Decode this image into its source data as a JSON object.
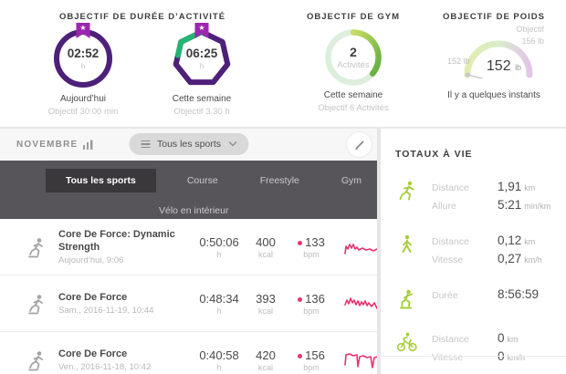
{
  "colors": {
    "ring_purple": "#4d2079",
    "badge_purple": "#9b27af",
    "progress_green": "#22b573",
    "gym_green_light": "#ddeedd",
    "sparkline_pink": "#e8336e",
    "icon_green": "#a6ce39",
    "tabbar_dark": "#58555a"
  },
  "goals": {
    "duration": {
      "title": "OBJECTIF DE DURÉE D’ACTIVITÉ",
      "rings": [
        {
          "value": "02:52",
          "unit": "h",
          "period": "Aujourd’hui",
          "goal": "Objectif 30:00 min"
        },
        {
          "value": "06:25",
          "unit": "h",
          "period": "Cette semaine",
          "goal": "Objectif 3.30 h"
        }
      ]
    },
    "gym": {
      "title": "OBJECTIF DE GYM",
      "value": "2",
      "value_unit": "Activités",
      "period": "Cette semaine",
      "goal": "Objectif 6 Activités"
    },
    "weight": {
      "title": "OBJECTIF DE POIDS",
      "goal_label": "Objectif",
      "goal_value": "156 lb",
      "marker_value": "152 lb",
      "current_value": "152",
      "current_unit": "lb",
      "updated": "Il y a quelques instants"
    }
  },
  "activity_panel": {
    "month_label": "NOVEMBRE",
    "filter_label": "Tous les sports",
    "tabs": [
      {
        "label": "Tous les sports"
      },
      {
        "label": "Course"
      },
      {
        "label": "Freestyle"
      },
      {
        "label": "Gym"
      },
      {
        "label": "Vélo en intérieur"
      }
    ],
    "rows": [
      {
        "title": "Core De Force: Dynamic Strength",
        "date": "Aujourd’hui, 9:06",
        "duration": "0:50:06",
        "duration_unit": "h",
        "calories": "400",
        "calories_unit": "kcal",
        "heart_rate": "133",
        "heart_rate_unit": "bpm",
        "sparkline": "2,20 3,12 5,15 7,10 9,14 11,10 13,15 15,13 17,16 21,14 25,16 29,15 33,17 37,15 41,17 44,8 47,6 50,10 54,9"
      },
      {
        "title": "Core De Force",
        "date": "Sam., 2016-11-19, 10:44",
        "duration": "0:48:34",
        "duration_unit": "h",
        "calories": "393",
        "calories_unit": "kcal",
        "heart_rate": "136",
        "heart_rate_unit": "bpm",
        "sparkline": "2,14 4,9 6,13 8,7 10,12 12,9 14,14 16,10 18,15 20,11 22,14 24,10 26,15 28,12 31,16 34,12 37,18 40,13 43,20 46,14 49,21 52,15 54,17"
      },
      {
        "title": "Core De Force",
        "date": "Ven., 2016-11-18, 10:42",
        "duration": "0:40:58",
        "duration_unit": "h",
        "calories": "420",
        "calories_unit": "kcal",
        "heart_rate": "156",
        "heart_rate_unit": "bpm",
        "sparkline": "2,18 3,7 7,6 11,8 15,7 16,20 18,9 22,8 26,10 30,9 32,21 34,10 38,9 42,11 43,23 46,9 50,10 52,12 54,22"
      }
    ]
  },
  "totals": {
    "title": "TOTAUX À VIE",
    "entries": [
      {
        "icon": "run-icon",
        "stats": [
          {
            "label": "Distance",
            "value": "1,91",
            "unit": "km"
          },
          {
            "label": "Allure",
            "value": "5:21",
            "unit": "min/km"
          }
        ]
      },
      {
        "icon": "walk-icon",
        "stats": [
          {
            "label": "Distance",
            "value": "0,12",
            "unit": "km"
          },
          {
            "label": "Vitesse",
            "value": "0,27",
            "unit": "km/h"
          }
        ]
      },
      {
        "icon": "gym-icon",
        "stats": [
          {
            "label": "Durée",
            "value": "8:56:59",
            "unit": ""
          }
        ]
      },
      {
        "icon": "bike-icon",
        "stats": [
          {
            "label": "Distance",
            "value": "0",
            "unit": "km"
          },
          {
            "label": "Vitesse",
            "value": "0",
            "unit": "km/h"
          }
        ]
      }
    ]
  }
}
